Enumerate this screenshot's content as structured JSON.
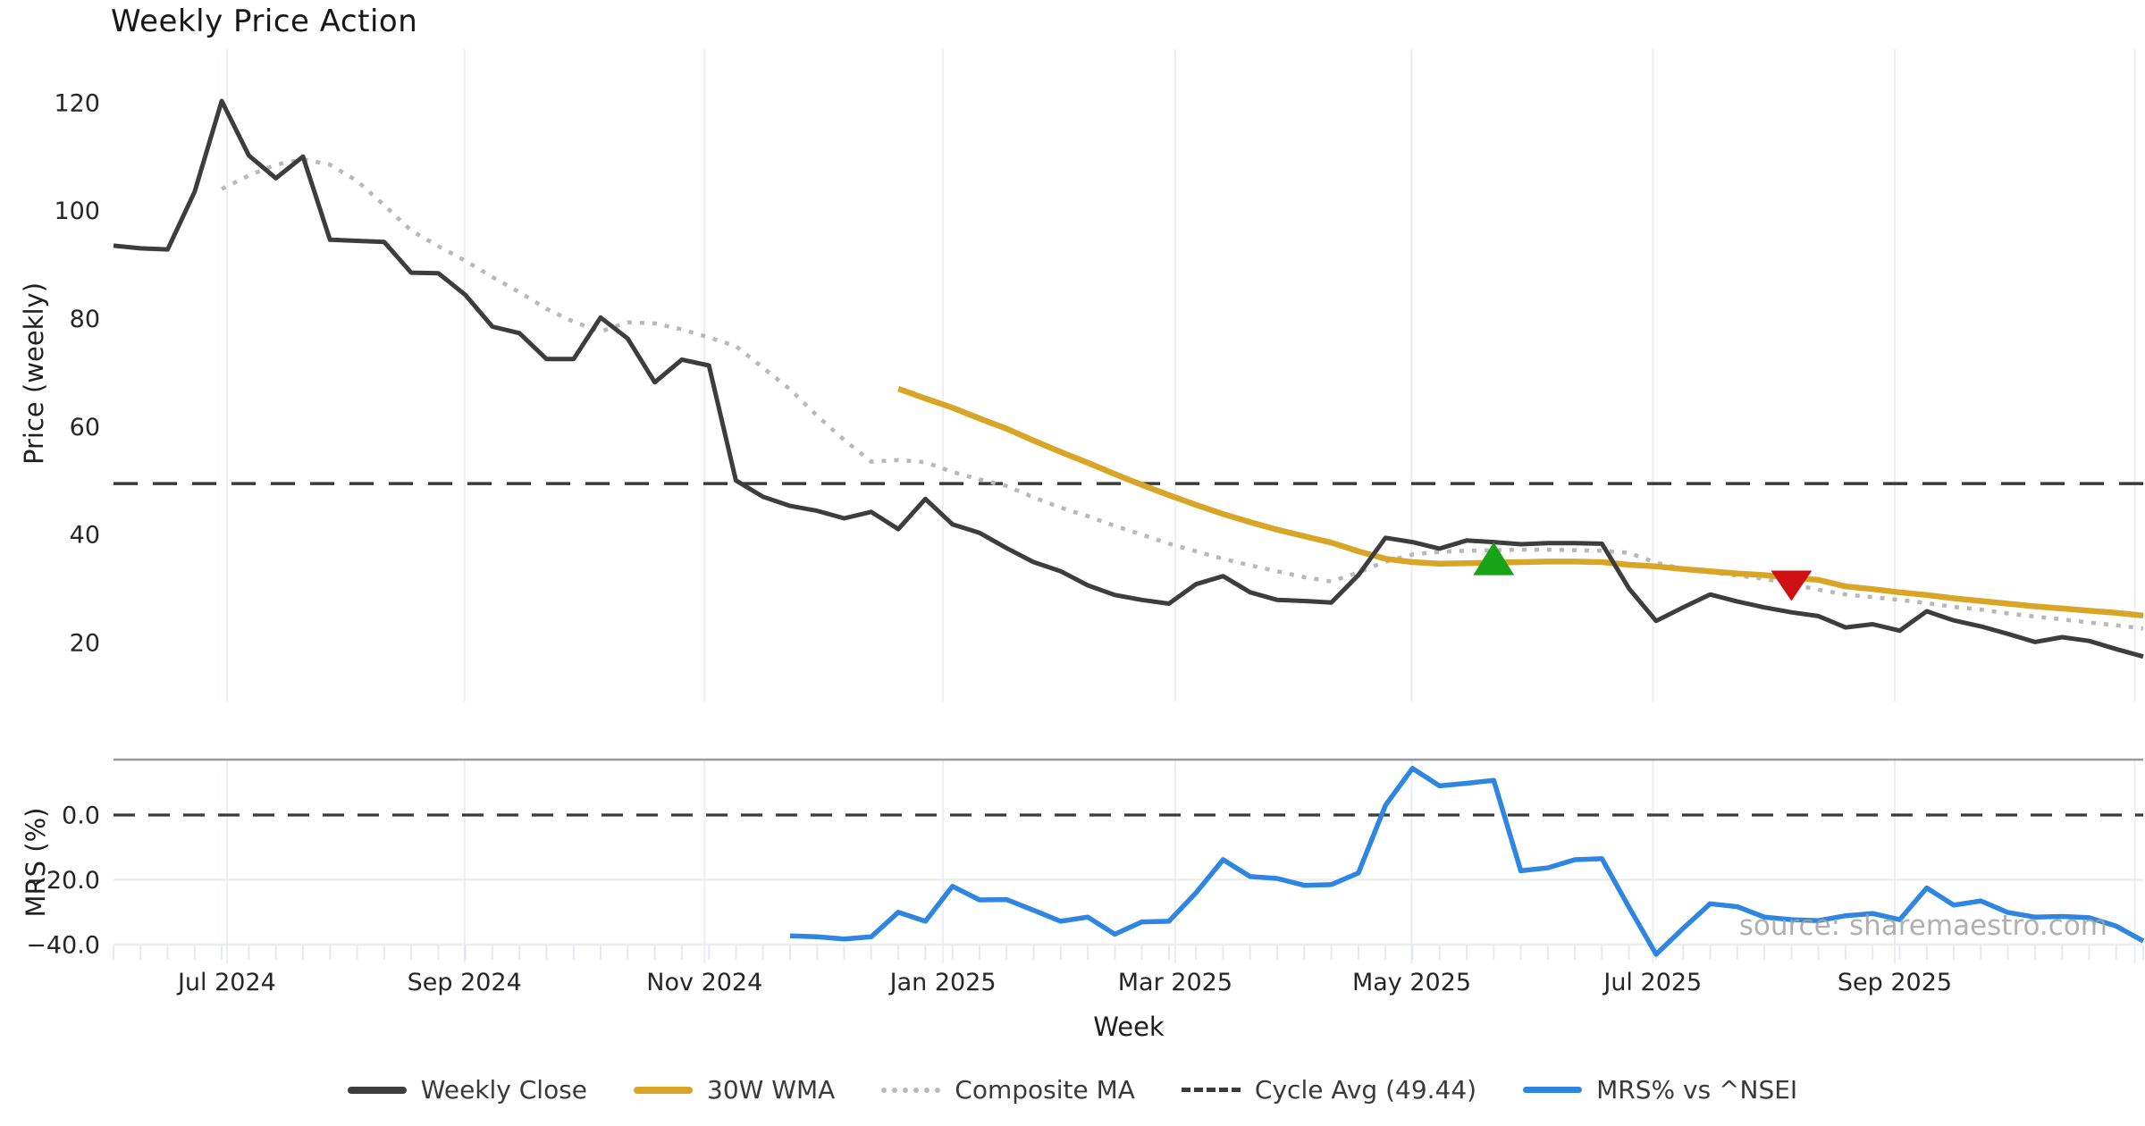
{
  "title": "Weekly Price Action",
  "watermark": "source: sharemaestro.com",
  "colors": {
    "weekly_close": "#3d3d3d",
    "wma_30w": "#d9a527",
    "composite_ma": "#b9b9b9",
    "cycle_avg": "#3a3a3a",
    "mrs": "#2e86e0",
    "buy_marker": "#17a517",
    "sell_marker": "#d01010",
    "gridline": "#eaeef5",
    "mrs_hgrid": "#ededed",
    "mrs_top_border": "#9b9b9b",
    "tick_text": "#262626"
  },
  "legend": [
    {
      "key": "weekly_close",
      "label": "Weekly Close"
    },
    {
      "key": "wma_30w",
      "label": "30W WMA"
    },
    {
      "key": "composite_ma",
      "label": "Composite MA"
    },
    {
      "key": "cycle_avg",
      "label": "Cycle Avg (49.44)"
    },
    {
      "key": "mrs",
      "label": "MRS% vs ^NSEI"
    }
  ],
  "chart_data": {
    "type": "line",
    "title": "Weekly Price Action",
    "x_axis": {
      "label": "Week",
      "weeks_total": 76,
      "ticks": [
        {
          "week": 4.19,
          "label": "Jul 2024"
        },
        {
          "week": 12.97,
          "label": "Sep 2024"
        },
        {
          "week": 21.84,
          "label": "Nov 2024"
        },
        {
          "week": 30.65,
          "label": "Jan 2025"
        },
        {
          "week": 39.23,
          "label": "Mar 2025"
        },
        {
          "week": 47.97,
          "label": "May 2025"
        },
        {
          "week": 56.88,
          "label": "Jul 2025"
        },
        {
          "week": 65.82,
          "label": "Sep 2025"
        },
        {
          "week": 74.69,
          "label": ""
        }
      ]
    },
    "price_panel": {
      "ylabel": "Price (weekly)",
      "yticks": [
        120,
        100,
        80,
        60,
        40,
        20
      ],
      "ylim": [
        9,
        130
      ],
      "cycle_avg": 49.44,
      "grid": "vertical-only",
      "series": {
        "weekly_close": [
          93.5,
          93,
          92.8,
          103.5,
          120.3,
          110.2,
          106,
          110,
          94.6,
          94.4,
          94.2,
          88.5,
          88.4,
          84.4,
          78.5,
          77.3,
          72.5,
          72.5,
          80.2,
          76.3,
          68.2,
          72.4,
          71.3,
          50,
          47,
          45.3,
          44.4,
          43,
          44.2,
          41,
          46.6,
          41.9,
          40.3,
          37.5,
          34.9,
          33.2,
          30.6,
          28.8,
          27.9,
          27.2,
          30.8,
          32.3,
          29.3,
          27.9,
          27.7,
          27.4,
          32.5,
          39.4,
          38.6,
          37.4,
          38.9,
          38.6,
          38.2,
          38.4,
          38.4,
          38.3,
          30,
          24,
          26.5,
          28.9,
          27.6,
          26.5,
          25.6,
          24.9,
          22.8,
          23.4,
          22.2,
          25.8,
          24.1,
          23,
          21.6,
          20.1,
          21,
          20.3,
          18.8,
          17.4
        ],
        "wma_30w": [
          null,
          null,
          null,
          null,
          null,
          null,
          null,
          null,
          null,
          null,
          null,
          null,
          null,
          null,
          null,
          null,
          null,
          null,
          null,
          null,
          null,
          null,
          null,
          null,
          null,
          null,
          null,
          null,
          null,
          67,
          65.2,
          63.5,
          61.5,
          59.6,
          57.4,
          55.3,
          53.3,
          51.2,
          49.2,
          47.3,
          45.5,
          43.8,
          42.3,
          40.9,
          39.7,
          38.5,
          36.9,
          35.5,
          34.9,
          34.6,
          34.7,
          34.8,
          34.9,
          35,
          35,
          34.9,
          34.4,
          34.1,
          33.6,
          33.2,
          32.8,
          32.5,
          32,
          31.6,
          30.4,
          29.9,
          29.3,
          28.8,
          28.2,
          27.7,
          27.2,
          26.7,
          26.3,
          25.9,
          25.5,
          25
        ],
        "composite_ma": [
          null,
          null,
          null,
          null,
          104,
          106.5,
          108.5,
          109.5,
          108.5,
          105.5,
          101,
          96.3,
          93.4,
          90.7,
          87.7,
          84.9,
          81.8,
          79.4,
          77.6,
          79.3,
          79.1,
          78,
          76.5,
          74.9,
          70.9,
          66.9,
          62,
          57.5,
          53.5,
          53.8,
          53.4,
          51.6,
          50.2,
          49,
          46.9,
          45,
          43.4,
          41.6,
          40,
          38.3,
          36.9,
          35.5,
          34.3,
          33.2,
          32.1,
          31.3,
          33,
          35,
          36.3,
          36.8,
          37,
          37.1,
          37.2,
          37.2,
          37.1,
          37,
          36.6,
          34.8,
          33.6,
          33,
          32.4,
          31.8,
          30.8,
          29.8,
          28.9,
          28.4,
          27.9,
          27.3,
          26.6,
          26.1,
          25.4,
          24.8,
          24.3,
          23.7,
          23.2,
          22.6
        ]
      },
      "markers": [
        {
          "week": 51,
          "price": 38.6,
          "type": "buy-triangle-up",
          "color": "green"
        },
        {
          "week": 62,
          "price": 30.5,
          "type": "sell-triangle-down",
          "color": "red"
        }
      ]
    },
    "mrs_panel": {
      "ylabel": "MRS (%)",
      "yticks": [
        0.0,
        -20.0,
        -40.0
      ],
      "ylim": [
        -46,
        17
      ],
      "zero_line": 0,
      "series": {
        "mrs_vs_nsei": [
          null,
          null,
          null,
          null,
          null,
          null,
          null,
          null,
          null,
          null,
          null,
          null,
          null,
          null,
          null,
          null,
          null,
          null,
          null,
          null,
          null,
          null,
          null,
          null,
          null,
          -37.3,
          -37.6,
          -38.3,
          -37.6,
          -30,
          -32.8,
          -22,
          -26.2,
          -26.1,
          -29.4,
          -32.8,
          -31.5,
          -36.8,
          -33,
          -32.8,
          -24,
          -13.8,
          -19,
          -19.6,
          -21.7,
          -21.5,
          -17.9,
          3,
          14.4,
          9,
          9.8,
          10.7,
          -17.2,
          -16.3,
          -13.8,
          -13.5,
          -28.5,
          -43,
          -35,
          -27.4,
          -28.3,
          -31.5,
          -32.3,
          -32.6,
          -31.1,
          -30.4,
          -32.3,
          -22.5,
          -27.8,
          -26.5,
          -30.1,
          -31.5,
          -31.3,
          -31.7,
          -34.3,
          -38.9
        ]
      }
    }
  }
}
